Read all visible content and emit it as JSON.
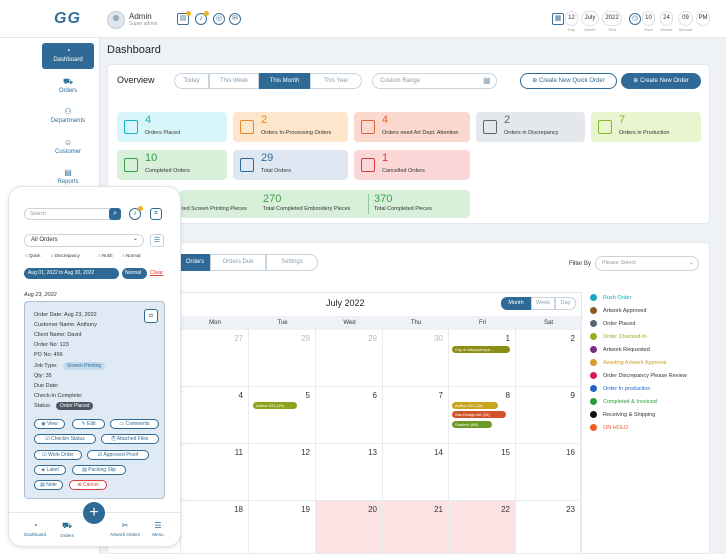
{
  "topbar": {
    "logo": "GG",
    "user_name": "Admin",
    "user_role": "Super admin",
    "date_day": "12",
    "date_month": "July",
    "date_year": "2022",
    "time_hour": "10",
    "time_minute": "24",
    "time_second": "09",
    "time_ampm": "PM",
    "label_day": "Day",
    "label_month": "Month",
    "label_year": "Year",
    "label_hour": "Hour",
    "label_minute": "Minute",
    "label_second": "Second"
  },
  "sidebar": {
    "items": [
      {
        "label": "Dashboard"
      },
      {
        "label": "Orders"
      },
      {
        "label": "Departments"
      },
      {
        "label": "Customer"
      },
      {
        "label": "Reports"
      }
    ]
  },
  "page_title": "Dashboard",
  "overview": {
    "title": "Overview",
    "segments": [
      "Today",
      "This Week",
      "This Month",
      "This Year"
    ],
    "range_placeholder": "Custom Range",
    "quick_order_label": "Create New Quick Order",
    "new_order_label": "Create New Order"
  },
  "stats": [
    {
      "value": "4",
      "label": "Orders Placed",
      "color": "#14b3c4",
      "bg": "#d8f6f9"
    },
    {
      "value": "2",
      "label": "Orders In-Processing Orders",
      "color": "#e38a25",
      "bg": "#fde6cc"
    },
    {
      "value": "4",
      "label": "Orders need Art Dept. Attention",
      "color": "#e0633e",
      "bg": "#fbd9cf"
    },
    {
      "value": "2",
      "label": "Orders in Discrepancy",
      "color": "#5d6772",
      "bg": "#e4e8ec"
    },
    {
      "value": "7",
      "label": "Orders in Production",
      "color": "#7fbb2b",
      "bg": "#e8f5cf"
    },
    {
      "value": "10",
      "label": "Completed Orders",
      "color": "#3b9f49",
      "bg": "#d8f0da"
    },
    {
      "value": "29",
      "label": "Total Orders",
      "color": "#2e6a95",
      "bg": "#dfe8f2"
    },
    {
      "value": "1",
      "label": "Cancelled Orders",
      "color": "#d83a3a",
      "bg": "#fbd7d7"
    }
  ],
  "stats2": [
    {
      "value": "",
      "label": "ted Screen Printing Pieces"
    },
    {
      "value": "270",
      "label": "Total Completed Embroidery Pieces"
    },
    {
      "value": "370",
      "label": "Total Completed Pieces"
    }
  ],
  "calendar_tabs": [
    "Orders",
    "Orders Due",
    "Settings"
  ],
  "filter": {
    "label": "Filter By",
    "placeholder": "Please Select"
  },
  "calendar": {
    "title": "July 2022",
    "views": [
      "Month",
      "Week",
      "Day"
    ],
    "weekdays": [
      "Mon",
      "Tue",
      "Wed",
      "Thu",
      "Fri",
      "Sat"
    ],
    "weeks": [
      [
        "27",
        "28",
        "29",
        "30",
        "1",
        "2"
      ],
      [
        "4",
        "5",
        "6",
        "7",
        "8",
        "9"
      ],
      [
        "11",
        "12",
        "13",
        "14",
        "15",
        "16"
      ],
      [
        "18",
        "19",
        "20",
        "21",
        "22",
        "23"
      ]
    ],
    "events": [
      {
        "label": "City of Albuquerque...",
        "color": "#8b8d14"
      },
      {
        "label": "Author 223 (19)",
        "color": "#8fa21e"
      },
      {
        "label": "Author 222 (18)",
        "color": "#c7a51f"
      },
      {
        "label": "Sas Design Art (16)",
        "color": "#d2542d"
      },
      {
        "label": "Santech (66)",
        "color": "#6d9a27"
      }
    ]
  },
  "legend": [
    {
      "label": "Rush Order",
      "color": "#1ba8bd"
    },
    {
      "label": "Artwork Approved",
      "color": "#8b5a2b"
    },
    {
      "label": "Order Placed",
      "color": "#5a6570"
    },
    {
      "label": "Order Checked-In",
      "color": "#9cab1f"
    },
    {
      "label": "Artwork Requested",
      "color": "#7b2d84"
    },
    {
      "label": "Awaiting Artwork Approval",
      "color": "#d0a02a"
    },
    {
      "label": "Order Discrepancy Please Review",
      "color": "#d81b56"
    },
    {
      "label": "Order In production",
      "color": "#2563c9"
    },
    {
      "label": "Completed & Invoiced",
      "color": "#2a9b3c"
    },
    {
      "label": "Receiving & Shipping",
      "color": "#111111"
    },
    {
      "label": "ON HOLD",
      "color": "#f25c1e"
    }
  ],
  "mobile": {
    "search_placeholder": "Search",
    "select_value": "All Orders",
    "radios": [
      "Quick",
      "Discrepancy",
      "Rush",
      "Normal"
    ],
    "date_range": "Aug 01, 2022 to Aug 30, 2022",
    "normal_chip": "Normal",
    "clear_label": "Clear",
    "date_heading": "Aug 23, 2022",
    "order": {
      "order_date": "Order Date: Aug 23, 2022",
      "customer": "Customer Name: Anthony",
      "client": "Client Name: David",
      "order_no": "Order No: 123",
      "po_no": "PO No: 456",
      "job_type_label": "Job Type:",
      "job_type": "Screen Printing",
      "qty": "Qty: 35",
      "due": "Due Date:",
      "checkin": "Check-In Complete:",
      "status_label": "Status:",
      "status": "Order Placed"
    },
    "actions": [
      "View",
      "Edit",
      "Comments",
      "Checkin Status",
      "Attached Files",
      "Work Order",
      "Approved Proof",
      "Label",
      "Packing Slip",
      "Note",
      "Cancel"
    ],
    "bottom_nav": [
      "Dashboard",
      "Orders",
      "Artwork Orders",
      "Menu"
    ]
  }
}
